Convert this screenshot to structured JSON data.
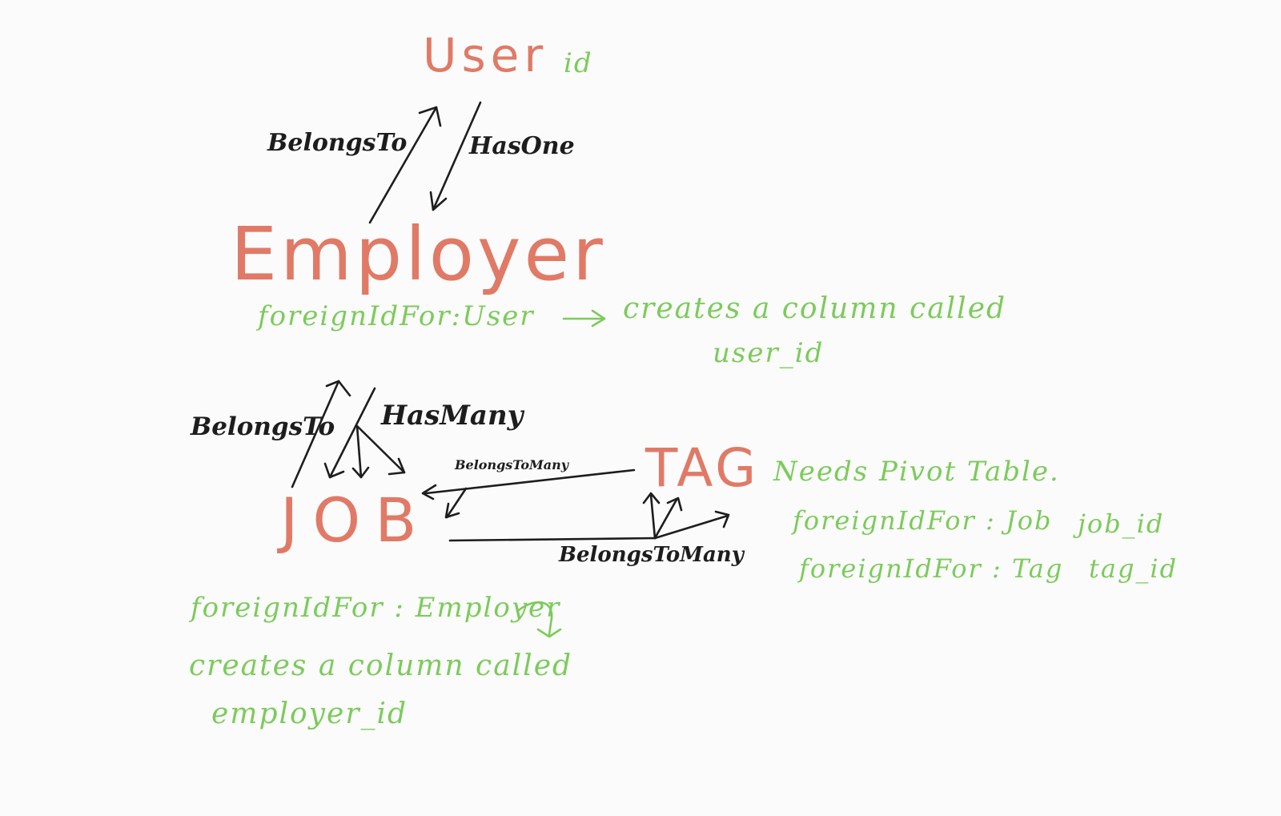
{
  "entities": {
    "user": "User",
    "employer": "Employer",
    "job": "JOB",
    "tag": "TAG"
  },
  "relations": {
    "employer_user_belongs_to": "BelongsTo",
    "user_employer_has_one": "HasOne",
    "job_employer_belongs_to": "BelongsTo",
    "employer_job_has_many": "HasMany",
    "tag_job_belongs_to_many": "BelongsToMany",
    "job_tag_belongs_to_many": "BelongsToMany"
  },
  "notes": {
    "user_id": "id",
    "employer_foreign": "foreignIdFor:User",
    "employer_creates": "creates a column called",
    "employer_column": "user_id",
    "pivot_title": "Needs Pivot Table.",
    "pivot_job_foreign": "foreignIdFor : Job",
    "pivot_job_column": "job_id",
    "pivot_tag_foreign": "foreignIdFor : Tag",
    "pivot_tag_column": "tag_id",
    "job_foreign": "foreignIdFor : Employer",
    "job_creates": "creates a column called",
    "job_column": "employer_id"
  },
  "colors": {
    "entity": "#e07a66",
    "relation": "#1d1d1d",
    "note": "#7ccb5b",
    "background": "#fbfbfb"
  }
}
